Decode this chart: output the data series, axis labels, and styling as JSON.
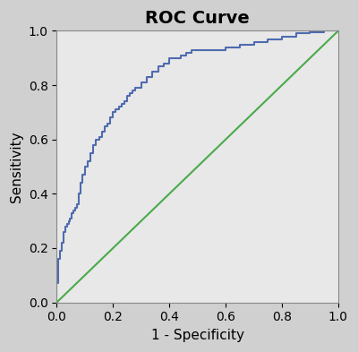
{
  "title": "ROC Curve",
  "xlabel": "1 - Specificity",
  "ylabel": "Sensitivity",
  "xlim": [
    0.0,
    1.0
  ],
  "ylim": [
    0.0,
    1.0
  ],
  "xticks": [
    0.0,
    0.2,
    0.4,
    0.6,
    0.8,
    1.0
  ],
  "yticks": [
    0.0,
    0.2,
    0.4,
    0.6,
    0.8,
    1.0
  ],
  "background_color": "#e8e8e8",
  "roc_color": "#4f6baf",
  "diagonal_color": "#4aaa4a",
  "roc_linewidth": 1.5,
  "diagonal_linewidth": 1.5,
  "title_fontsize": 14,
  "label_fontsize": 11,
  "tick_fontsize": 10,
  "roc_x": [
    0.0,
    0.0,
    0.006,
    0.006,
    0.012,
    0.012,
    0.018,
    0.018,
    0.024,
    0.024,
    0.03,
    0.03,
    0.036,
    0.036,
    0.042,
    0.042,
    0.048,
    0.048,
    0.054,
    0.054,
    0.06,
    0.06,
    0.066,
    0.066,
    0.072,
    0.072,
    0.078,
    0.078,
    0.084,
    0.084,
    0.09,
    0.09,
    0.1,
    0.1,
    0.11,
    0.11,
    0.12,
    0.12,
    0.13,
    0.13,
    0.14,
    0.14,
    0.15,
    0.15,
    0.16,
    0.16,
    0.17,
    0.17,
    0.18,
    0.18,
    0.19,
    0.19,
    0.2,
    0.2,
    0.21,
    0.21,
    0.22,
    0.22,
    0.23,
    0.23,
    0.24,
    0.24,
    0.25,
    0.25,
    0.26,
    0.26,
    0.27,
    0.27,
    0.28,
    0.28,
    0.3,
    0.3,
    0.32,
    0.32,
    0.34,
    0.34,
    0.36,
    0.36,
    0.38,
    0.38,
    0.4,
    0.4,
    0.42,
    0.42,
    0.44,
    0.44,
    0.46,
    0.46,
    0.48,
    0.48,
    0.5,
    0.5,
    0.55,
    0.55,
    0.6,
    0.6,
    0.65,
    0.65,
    0.7,
    0.7,
    0.75,
    0.75,
    0.8,
    0.8,
    0.85,
    0.85,
    0.9,
    0.9,
    0.95,
    0.95,
    1.0
  ],
  "roc_y": [
    0.0,
    0.07,
    0.07,
    0.16,
    0.16,
    0.19,
    0.19,
    0.22,
    0.22,
    0.26,
    0.26,
    0.28,
    0.28,
    0.29,
    0.29,
    0.3,
    0.3,
    0.31,
    0.31,
    0.33,
    0.33,
    0.34,
    0.34,
    0.35,
    0.35,
    0.36,
    0.36,
    0.4,
    0.4,
    0.44,
    0.44,
    0.47,
    0.47,
    0.5,
    0.5,
    0.52,
    0.52,
    0.55,
    0.55,
    0.58,
    0.58,
    0.6,
    0.6,
    0.61,
    0.61,
    0.63,
    0.63,
    0.65,
    0.65,
    0.66,
    0.66,
    0.68,
    0.68,
    0.7,
    0.7,
    0.71,
    0.71,
    0.72,
    0.72,
    0.73,
    0.73,
    0.74,
    0.74,
    0.76,
    0.76,
    0.77,
    0.77,
    0.78,
    0.78,
    0.79,
    0.79,
    0.81,
    0.81,
    0.83,
    0.83,
    0.85,
    0.85,
    0.87,
    0.87,
    0.88,
    0.88,
    0.9,
    0.9,
    0.9,
    0.9,
    0.91,
    0.91,
    0.92,
    0.92,
    0.93,
    0.93,
    0.93,
    0.93,
    0.93,
    0.93,
    0.94,
    0.94,
    0.95,
    0.95,
    0.96,
    0.96,
    0.97,
    0.97,
    0.98,
    0.98,
    0.99,
    0.99,
    0.995,
    0.995,
    1.0,
    1.0
  ]
}
